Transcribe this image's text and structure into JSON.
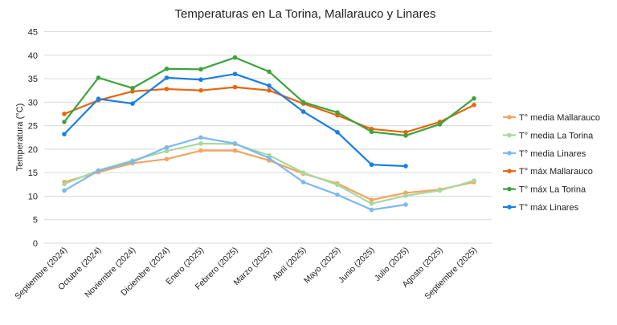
{
  "chart_data": {
    "type": "line",
    "title": "Temperaturas en La Torina, Mallarauco y Linares",
    "xlabel": "",
    "ylabel": "Temperatura (°C)",
    "ylim": [
      0,
      45
    ],
    "yticks": [
      0,
      5,
      10,
      15,
      20,
      25,
      30,
      35,
      40,
      45
    ],
    "grid": true,
    "legend_position": "right",
    "categories": [
      "Septiembre (2024)",
      "Octubre (2024)",
      "Noviembre (2024)",
      "Diciembre (2024)",
      "Enero (2025)",
      "Febrero (2025)",
      "Marzo (2025)",
      "Abril (2025)",
      "Mayo (2025)",
      "Junio (2025)",
      "Julio (2025)",
      "Agosto (2025)",
      "Septiembre (2025)"
    ],
    "series": [
      {
        "name": "T° media Mallarauco",
        "color": "#F4A460",
        "values": [
          13.0,
          15.1,
          17.0,
          17.9,
          19.7,
          19.7,
          17.6,
          14.8,
          12.7,
          9.2,
          10.7,
          11.4,
          13.0
        ]
      },
      {
        "name": "T° media La Torina",
        "color": "#A8D8A0",
        "values": [
          12.6,
          15.5,
          17.6,
          19.6,
          21.2,
          21.1,
          18.7,
          15.0,
          12.4,
          8.4,
          10.1,
          11.2,
          13.3
        ]
      },
      {
        "name": "T° media Linares",
        "color": "#7EB8EE",
        "values": [
          11.2,
          15.4,
          17.3,
          20.4,
          22.5,
          21.2,
          18.1,
          13.0,
          10.3,
          7.1,
          8.2,
          null,
          null
        ]
      },
      {
        "name": "T° máx Mallarauco",
        "color": "#E8650F",
        "values": [
          27.5,
          30.4,
          32.3,
          32.8,
          32.5,
          33.2,
          32.5,
          29.7,
          27.2,
          24.3,
          23.6,
          25.8,
          29.4
        ]
      },
      {
        "name": "T° máx La Torina",
        "color": "#3DA33D",
        "values": [
          25.8,
          35.2,
          33.0,
          37.1,
          37.0,
          39.5,
          36.5,
          30.0,
          27.8,
          23.7,
          22.9,
          25.3,
          30.8
        ]
      },
      {
        "name": "T° máx Linares",
        "color": "#1A7FE0",
        "values": [
          23.2,
          30.7,
          29.7,
          35.2,
          34.8,
          36.0,
          33.5,
          28.0,
          23.6,
          16.7,
          16.4,
          null,
          null
        ]
      }
    ]
  }
}
